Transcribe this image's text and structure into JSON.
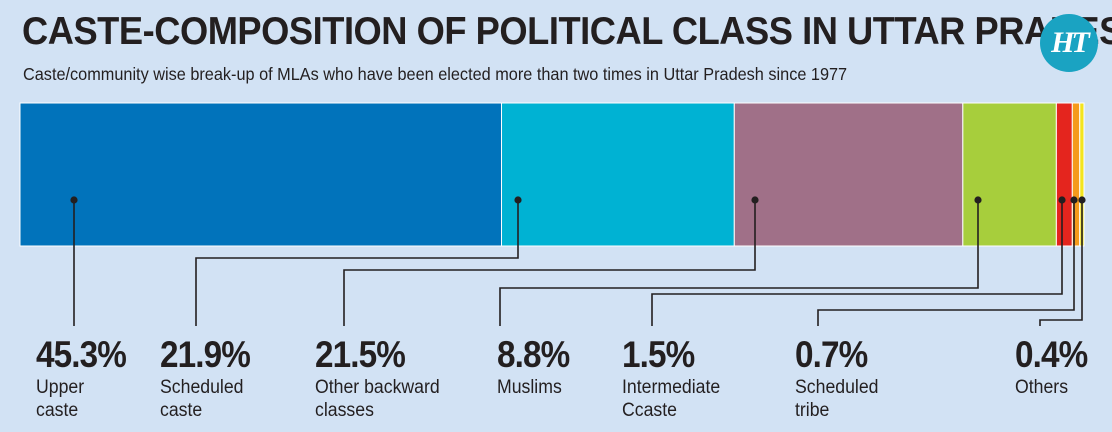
{
  "title": "CASTE-COMPOSITION OF POLITICAL CLASS IN UTTAR PRADESH",
  "subtitle": "Caste/community wise break-up of MLAs who have been elected more than two times in Uttar Pradesh since 1977",
  "logo_text": "HT",
  "colors": {
    "background": "#d2e2f4",
    "upper_caste": "#0173bb",
    "scheduled_caste": "#00b2d3",
    "obc": "#a07088",
    "muslims": "#a7ce3c",
    "intermediate": "#e4251e",
    "scheduled_tribe": "#f59a1b",
    "others": "#f3e41e"
  },
  "chart_data": {
    "type": "stacked-bar",
    "orientation": "horizontal",
    "title": "CASTE-COMPOSITION OF POLITICAL CLASS IN UTTAR PRADESH",
    "subtitle": "Caste/community wise break-up of MLAs who have been elected more than two times in Uttar Pradesh since 1977",
    "unit": "%",
    "segments": [
      {
        "name": "Upper caste",
        "value": 45.3,
        "label": "45.3%",
        "category_text": "Upper\ncaste",
        "color": "#0173bb"
      },
      {
        "name": "Scheduled caste",
        "value": 21.9,
        "label": "21.9%",
        "category_text": "Scheduled\ncaste",
        "color": "#00b2d3"
      },
      {
        "name": "Other backward classes",
        "value": 21.5,
        "label": "21.5%",
        "category_text": "Other backward\nclasses",
        "color": "#a07088"
      },
      {
        "name": "Muslims",
        "value": 8.8,
        "label": "8.8%",
        "category_text": "Muslims",
        "color": "#a7ce3c"
      },
      {
        "name": "Intermediate Ccaste",
        "value": 1.5,
        "label": "1.5%",
        "category_text": "Intermediate\nCcaste",
        "color": "#e4251e"
      },
      {
        "name": "Scheduled tribe",
        "value": 0.7,
        "label": "0.7%",
        "category_text": "Scheduled\ntribe",
        "color": "#f59a1b"
      },
      {
        "name": "Others",
        "value": 0.4,
        "label": "0.4%",
        "category_text": "Others",
        "color": "#f3e41e"
      }
    ]
  }
}
